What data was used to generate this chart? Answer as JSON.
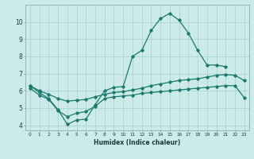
{
  "xlabel": "Humidex (Indice chaleur)",
  "bg_color": "#cceae8",
  "grid_color": "#aad4d0",
  "line_color": "#1a7a6e",
  "x": [
    0,
    1,
    2,
    3,
    4,
    5,
    6,
    7,
    8,
    9,
    10,
    11,
    12,
    13,
    14,
    15,
    16,
    17,
    18,
    19,
    20,
    21,
    22,
    23
  ],
  "line_upper": [
    6.3,
    5.9,
    5.55,
    4.9,
    4.05,
    4.3,
    4.35,
    5.2,
    6.0,
    6.2,
    6.25,
    8.0,
    8.35,
    9.5,
    10.2,
    10.5,
    10.1,
    9.35,
    8.35,
    7.5,
    7.5,
    7.4,
    null,
    null
  ],
  "line_mid": [
    6.3,
    6.0,
    5.8,
    5.55,
    5.4,
    5.45,
    5.5,
    5.65,
    5.8,
    5.9,
    5.95,
    6.05,
    6.15,
    6.3,
    6.4,
    6.5,
    6.6,
    6.65,
    6.7,
    6.8,
    6.9,
    6.95,
    6.9,
    6.6
  ],
  "line_lower": [
    6.15,
    5.75,
    5.5,
    4.85,
    4.5,
    4.7,
    4.8,
    5.1,
    5.55,
    5.65,
    5.7,
    5.75,
    5.85,
    5.9,
    5.95,
    6.0,
    6.05,
    6.1,
    6.15,
    6.2,
    6.25,
    6.3,
    6.3,
    5.6
  ],
  "ylim": [
    3.7,
    11.0
  ],
  "yticks": [
    4,
    5,
    6,
    7,
    8,
    9,
    10
  ],
  "xlim": [
    -0.5,
    23.5
  ]
}
